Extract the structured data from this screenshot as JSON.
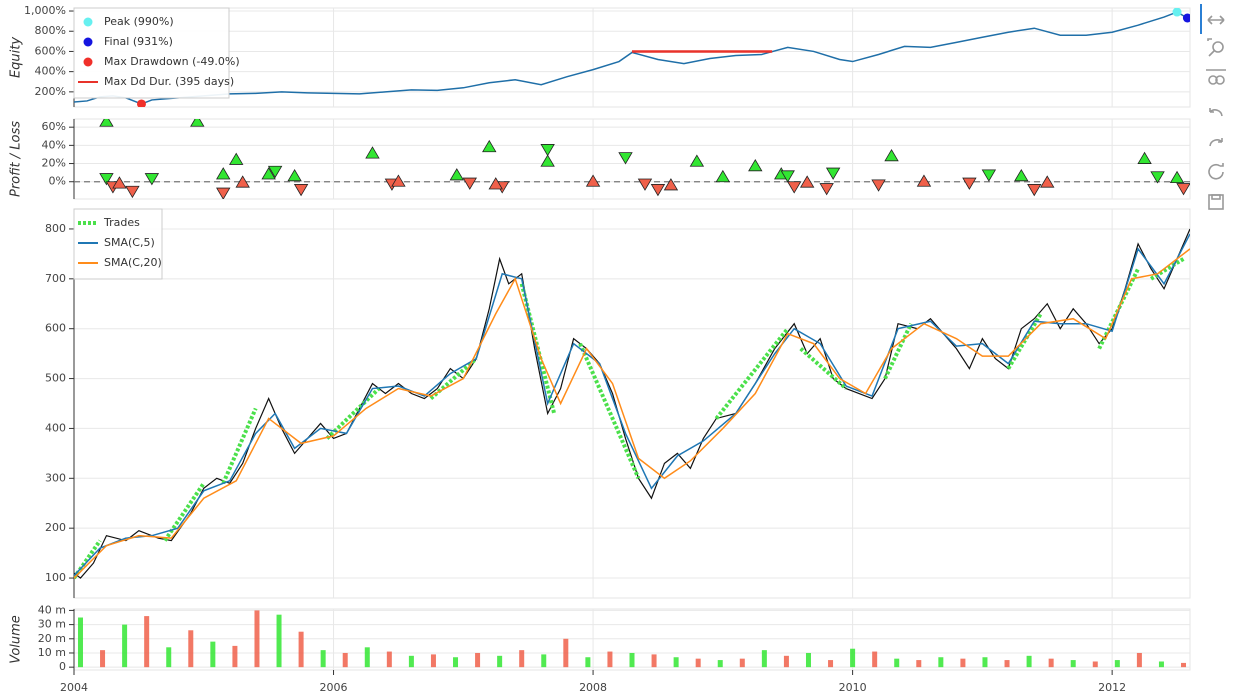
{
  "chart_data": [
    {
      "type": "line",
      "ylabel": "Equity",
      "xlim": [
        2004,
        2012.6
      ],
      "ylim": [
        50,
        1030
      ],
      "grid": true,
      "legend": "top-left",
      "yticks": [
        {
          "value": 200,
          "label": "200%"
        },
        {
          "value": 400,
          "label": "400%"
        },
        {
          "value": 600,
          "label": "600%"
        },
        {
          "value": 800,
          "label": "800%"
        },
        {
          "value": 1000,
          "label": "1,000%"
        }
      ],
      "x": [
        2004.0,
        2004.1,
        2004.2,
        2004.3,
        2004.4,
        2004.52,
        2004.6,
        2004.8,
        2005.0,
        2005.2,
        2005.4,
        2005.6,
        2005.8,
        2006.0,
        2006.2,
        2006.4,
        2006.6,
        2006.8,
        2007.0,
        2007.2,
        2007.4,
        2007.6,
        2007.8,
        2008.0,
        2008.2,
        2008.3,
        2008.5,
        2008.7,
        2008.9,
        2009.1,
        2009.3,
        2009.5,
        2009.7,
        2009.9,
        2010.0,
        2010.2,
        2010.4,
        2010.6,
        2010.8,
        2011.0,
        2011.2,
        2011.4,
        2011.6,
        2011.8,
        2012.0,
        2012.2,
        2012.4,
        2012.5,
        2012.58
      ],
      "series": [
        {
          "color": "#1f6fa8",
          "values": [
            100,
            110,
            150,
            160,
            140,
            80,
            120,
            140,
            160,
            180,
            185,
            200,
            190,
            185,
            180,
            200,
            220,
            215,
            240,
            290,
            320,
            270,
            350,
            420,
            500,
            590,
            520,
            480,
            530,
            560,
            570,
            640,
            600,
            520,
            500,
            570,
            650,
            640,
            690,
            740,
            790,
            830,
            760,
            760,
            790,
            860,
            940,
            990,
            931
          ]
        }
      ],
      "markers": [
        {
          "name": "Peak (990%)",
          "color": "#66f0f0",
          "x": 2012.5,
          "y": 990
        },
        {
          "name": "Final (931%)",
          "color": "#1515e0",
          "x": 2012.58,
          "y": 931
        },
        {
          "name": "Max Drawdown (-49.0%)",
          "color": "#f0302a",
          "x": 2004.52,
          "y": 80
        }
      ],
      "segments": [
        {
          "name": "Max Dd Dur. (395 days)",
          "color": "#e8322a",
          "x": [
            2008.3,
            2009.38
          ],
          "y": [
            600,
            600
          ]
        }
      ]
    },
    {
      "type": "scatter",
      "ylabel": "Profit / Loss",
      "xlim": [
        2004,
        2012.6
      ],
      "ylim": [
        -19,
        69
      ],
      "grid": true,
      "yticks": [
        {
          "value": 0,
          "label": "0%"
        },
        {
          "value": 20,
          "label": "20%"
        },
        {
          "value": 40,
          "label": "40%"
        },
        {
          "value": 60,
          "label": "60%"
        }
      ],
      "x": [
        2004.25,
        2004.95,
        2005.15,
        2005.25,
        2005.5,
        2005.7,
        2006.3,
        2006.95,
        2007.2,
        2007.65,
        2008.8,
        2009.25,
        2009.0,
        2009.45,
        2010.3,
        2011.3,
        2012.25,
        2012.5,
        2004.25,
        2004.6,
        2005.55,
        2007.65,
        2008.25,
        2009.5,
        2009.85,
        2011.05,
        2012.35,
        2004.3,
        2004.45,
        2005.15,
        2005.75,
        2006.45,
        2007.05,
        2007.3,
        2008.4,
        2008.5,
        2009.55,
        2009.8,
        2010.2,
        2010.9,
        2011.4,
        2012.55,
        2004.35,
        2005.3,
        2006.5,
        2007.25,
        2008.0,
        2008.6,
        2009.65,
        2010.55,
        2011.5
      ],
      "values": [
        66,
        66,
        8,
        24,
        8,
        6,
        31,
        7,
        38,
        22,
        22,
        17,
        5,
        8,
        28,
        6,
        25,
        4,
        4,
        4,
        12,
        36,
        27,
        7,
        10,
        8,
        6,
        -5,
        -10,
        -12,
        -8,
        -2,
        -1,
        -5,
        -2,
        -8,
        -5,
        -7,
        -3,
        -1,
        -8,
        -7,
        -2,
        -1,
        0,
        -3,
        0,
        -4,
        -1,
        0,
        -1
      ],
      "shapes": [
        "up",
        "up",
        "up",
        "up",
        "up",
        "up",
        "up",
        "up",
        "up",
        "up",
        "up",
        "up",
        "up",
        "up",
        "up",
        "up",
        "up",
        "up",
        "down",
        "down",
        "down",
        "down",
        "down",
        "down",
        "down",
        "down",
        "down",
        "down",
        "down",
        "down",
        "down",
        "down",
        "down",
        "down",
        "down",
        "down",
        "down",
        "down",
        "down",
        "down",
        "down",
        "down",
        "up",
        "up",
        "up",
        "up",
        "up",
        "up",
        "up",
        "up",
        "up"
      ],
      "colors": [
        "#32e632",
        "#32e632",
        "#32e632",
        "#32e632",
        "#32e632",
        "#32e632",
        "#32e632",
        "#32e632",
        "#32e632",
        "#32e632",
        "#32e632",
        "#32e632",
        "#32e632",
        "#32e632",
        "#32e632",
        "#32e632",
        "#32e632",
        "#32e632",
        "#32e632",
        "#32e632",
        "#32e632",
        "#32e632",
        "#32e632",
        "#32e632",
        "#32e632",
        "#32e632",
        "#32e632",
        "#f0604a",
        "#f0604a",
        "#f0604a",
        "#f0604a",
        "#f0604a",
        "#f0604a",
        "#f0604a",
        "#f0604a",
        "#f0604a",
        "#f0604a",
        "#f0604a",
        "#f0604a",
        "#f0604a",
        "#f0604a",
        "#f0604a",
        "#f0604a",
        "#f0604a",
        "#f0604a",
        "#f0604a",
        "#f0604a",
        "#f0604a",
        "#f0604a",
        "#f0604a",
        "#f0604a"
      ]
    },
    {
      "type": "line",
      "xlim": [
        2004,
        2012.6
      ],
      "ylim": [
        60,
        840
      ],
      "grid": true,
      "legend": "top-left",
      "yticks": [
        100,
        200,
        300,
        400,
        500,
        600,
        700,
        800
      ],
      "close": {
        "color": "#111111",
        "x": [
          2004.0,
          2004.05,
          2004.15,
          2004.25,
          2004.4,
          2004.5,
          2004.65,
          2004.75,
          2004.9,
          2005.0,
          2005.1,
          2005.2,
          2005.3,
          2005.4,
          2005.5,
          2005.6,
          2005.7,
          2005.8,
          2005.9,
          2006.0,
          2006.1,
          2006.2,
          2006.3,
          2006.4,
          2006.5,
          2006.6,
          2006.7,
          2006.8,
          2006.9,
          2007.0,
          2007.1,
          2007.2,
          2007.28,
          2007.35,
          2007.45,
          2007.55,
          2007.65,
          2007.75,
          2007.85,
          2007.95,
          2008.05,
          2008.15,
          2008.25,
          2008.35,
          2008.45,
          2008.55,
          2008.65,
          2008.75,
          2008.85,
          2008.95,
          2009.1,
          2009.25,
          2009.4,
          2009.55,
          2009.65,
          2009.75,
          2009.85,
          2009.95,
          2010.05,
          2010.15,
          2010.25,
          2010.35,
          2010.5,
          2010.6,
          2010.7,
          2010.8,
          2010.9,
          2011.0,
          2011.1,
          2011.2,
          2011.3,
          2011.4,
          2011.5,
          2011.6,
          2011.7,
          2011.8,
          2011.9,
          2012.0,
          2012.1,
          2012.2,
          2012.3,
          2012.4,
          2012.5,
          2012.6
        ],
        "values": [
          110,
          100,
          130,
          185,
          175,
          195,
          180,
          175,
          230,
          280,
          300,
          290,
          330,
          400,
          460,
          400,
          350,
          380,
          410,
          380,
          390,
          440,
          490,
          470,
          490,
          470,
          460,
          480,
          520,
          500,
          540,
          640,
          740,
          690,
          710,
          560,
          430,
          480,
          580,
          560,
          530,
          470,
          380,
          300,
          260,
          330,
          350,
          320,
          380,
          420,
          430,
          490,
          560,
          610,
          550,
          580,
          500,
          480,
          470,
          460,
          500,
          610,
          600,
          620,
          590,
          560,
          520,
          580,
          540,
          520,
          600,
          620,
          650,
          600,
          640,
          610,
          570,
          600,
          680,
          770,
          720,
          680,
          740,
          800
        ]
      },
      "trades": {
        "name": "Trades",
        "color": "#4be04b",
        "segments": [
          [
            2004.0,
            100,
            2004.2,
            175
          ],
          [
            2004.7,
            175,
            2005.0,
            290
          ],
          [
            2005.15,
            290,
            2005.4,
            440
          ],
          [
            2005.95,
            380,
            2006.35,
            480
          ],
          [
            2006.75,
            460,
            2007.1,
            540
          ],
          [
            2007.45,
            690,
            2007.7,
            430
          ],
          [
            2007.9,
            570,
            2008.35,
            300
          ],
          [
            2008.95,
            420,
            2009.5,
            600
          ],
          [
            2009.6,
            560,
            2009.95,
            480
          ],
          [
            2010.25,
            500,
            2010.45,
            610
          ],
          [
            2011.2,
            520,
            2011.45,
            630
          ],
          [
            2011.9,
            560,
            2012.2,
            720
          ],
          [
            2012.3,
            700,
            2012.55,
            740
          ]
        ]
      },
      "series": [
        {
          "name": "SMA(C,5)",
          "color": "#1f77b4",
          "x": [
            2004.0,
            2004.2,
            2004.4,
            2004.6,
            2004.8,
            2005.0,
            2005.2,
            2005.4,
            2005.55,
            2005.7,
            2005.9,
            2006.1,
            2006.3,
            2006.5,
            2006.7,
            2006.9,
            2007.1,
            2007.3,
            2007.45,
            2007.65,
            2007.85,
            2008.05,
            2008.25,
            2008.45,
            2008.65,
            2008.85,
            2009.1,
            2009.4,
            2009.55,
            2009.75,
            2009.95,
            2010.15,
            2010.35,
            2010.6,
            2010.8,
            2011.0,
            2011.2,
            2011.4,
            2011.6,
            2011.8,
            2012.0,
            2012.2,
            2012.4,
            2012.6
          ],
          "values": [
            105,
            160,
            180,
            185,
            200,
            275,
            295,
            390,
            430,
            360,
            400,
            390,
            480,
            485,
            465,
            510,
            540,
            710,
            700,
            450,
            570,
            530,
            390,
            280,
            345,
            375,
            430,
            550,
            600,
            570,
            485,
            465,
            600,
            615,
            565,
            570,
            530,
            615,
            610,
            610,
            595,
            760,
            690,
            790
          ]
        },
        {
          "name": "SMA(C,20)",
          "color": "#ff8c1a",
          "x": [
            2004.0,
            2004.25,
            2004.5,
            2004.75,
            2005.0,
            2005.25,
            2005.5,
            2005.75,
            2006.0,
            2006.25,
            2006.5,
            2006.75,
            2007.0,
            2007.25,
            2007.4,
            2007.6,
            2007.75,
            2007.95,
            2008.15,
            2008.35,
            2008.55,
            2008.75,
            2009.0,
            2009.25,
            2009.5,
            2009.7,
            2009.9,
            2010.1,
            2010.3,
            2010.55,
            2010.8,
            2011.0,
            2011.2,
            2011.45,
            2011.7,
            2011.95,
            2012.15,
            2012.35,
            2012.6
          ],
          "values": [
            100,
            165,
            185,
            180,
            260,
            295,
            420,
            370,
            385,
            440,
            480,
            465,
            500,
            630,
            700,
            540,
            450,
            560,
            490,
            340,
            300,
            335,
            400,
            470,
            590,
            570,
            500,
            470,
            560,
            610,
            580,
            545,
            545,
            610,
            620,
            580,
            700,
            710,
            760
          ]
        }
      ]
    },
    {
      "type": "bar",
      "ylabel": "Volume",
      "xlim": [
        2004,
        2012.6
      ],
      "ylim": [
        -2000000,
        41000000
      ],
      "grid": true,
      "yticks": [
        0,
        {
          "value": 10000000,
          "label": "10 m"
        },
        {
          "value": 20000000,
          "label": "20 m"
        },
        {
          "value": 30000000,
          "label": "30 m"
        },
        {
          "value": 40000000,
          "label": "40 m"
        }
      ],
      "xticks": [
        2004,
        2006,
        2008,
        2010,
        2012
      ],
      "x": [
        2004.05,
        2004.22,
        2004.39,
        2004.56,
        2004.73,
        2004.9,
        2005.07,
        2005.24,
        2005.41,
        2005.58,
        2005.75,
        2005.92,
        2006.09,
        2006.26,
        2006.43,
        2006.6,
        2006.77,
        2006.94,
        2007.11,
        2007.28,
        2007.45,
        2007.62,
        2007.79,
        2007.96,
        2008.13,
        2008.3,
        2008.47,
        2008.64,
        2008.81,
        2008.98,
        2009.15,
        2009.32,
        2009.49,
        2009.66,
        2009.83,
        2010.0,
        2010.17,
        2010.34,
        2010.51,
        2010.68,
        2010.85,
        2011.02,
        2011.19,
        2011.36,
        2011.53,
        2011.7,
        2011.87,
        2012.04,
        2012.21,
        2012.38,
        2012.55
      ],
      "values": [
        35000000,
        12000000,
        30000000,
        36000000,
        14000000,
        26000000,
        18000000,
        15000000,
        40000000,
        37000000,
        25000000,
        12000000,
        10000000,
        14000000,
        11000000,
        8000000,
        9000000,
        7000000,
        10000000,
        8000000,
        12000000,
        9000000,
        20000000,
        7000000,
        11000000,
        10000000,
        9000000,
        7000000,
        6000000,
        5000000,
        6000000,
        12000000,
        8000000,
        10000000,
        5000000,
        13000000,
        11000000,
        6000000,
        5000000,
        7000000,
        6000000,
        7000000,
        5000000,
        8000000,
        6000000,
        5000000,
        4000000,
        5000000,
        10000000,
        4000000,
        3000000
      ],
      "colors": [
        "#32e632",
        "#f0604a",
        "#32e632",
        "#f0604a",
        "#32e632",
        "#f0604a",
        "#32e632",
        "#f0604a",
        "#f0604a",
        "#32e632",
        "#f0604a",
        "#32e632",
        "#f0604a",
        "#32e632",
        "#f0604a",
        "#32e632",
        "#f0604a",
        "#32e632",
        "#f0604a",
        "#32e632",
        "#f0604a",
        "#32e632",
        "#f0604a",
        "#32e632",
        "#f0604a",
        "#32e632",
        "#f0604a",
        "#32e632",
        "#f0604a",
        "#32e632",
        "#f0604a",
        "#32e632",
        "#f0604a",
        "#32e632",
        "#f0604a",
        "#32e632",
        "#f0604a",
        "#32e632",
        "#f0604a",
        "#32e632",
        "#f0604a",
        "#32e632",
        "#f0604a",
        "#32e632",
        "#f0604a",
        "#32e632",
        "#f0604a",
        "#32e632",
        "#f0604a",
        "#32e632",
        "#f0604a"
      ]
    }
  ]
}
